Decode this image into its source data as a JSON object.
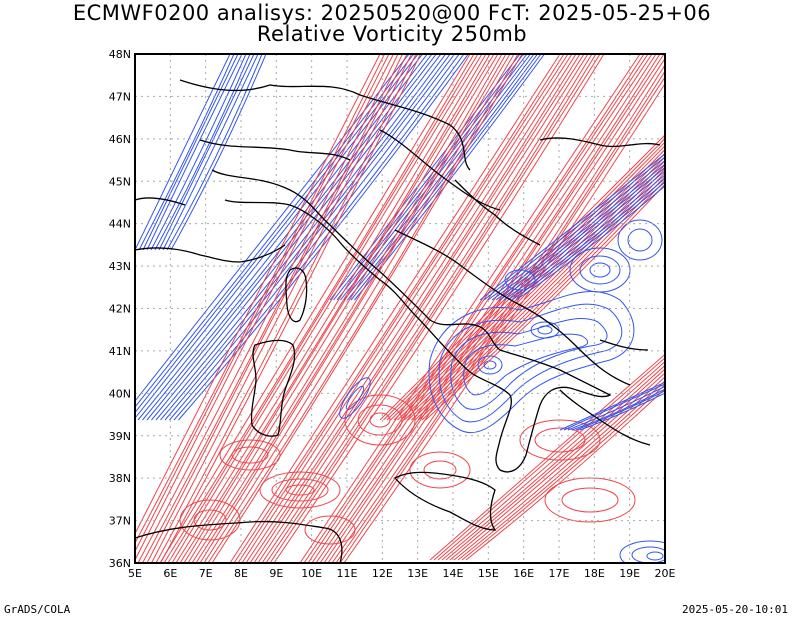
{
  "title": {
    "line1": "ECMWF0200 analisys: 20250520@00 FcT: 2025-05-25+06",
    "line2": "Relative Vorticity 250mb"
  },
  "map": {
    "lon_labels": [
      "5E",
      "6E",
      "7E",
      "8E",
      "9E",
      "10E",
      "11E",
      "12E",
      "13E",
      "14E",
      "15E",
      "16E",
      "17E",
      "18E",
      "19E",
      "20E"
    ],
    "lat_labels": [
      "48N",
      "47N",
      "46N",
      "45N",
      "44N",
      "43N",
      "42N",
      "41N",
      "40N",
      "39N",
      "38N",
      "37N",
      "36N"
    ],
    "colors": {
      "positive": "#f0444a",
      "negative": "#3355ee",
      "frame": "#000000",
      "coast": "#000000",
      "grid": "#aaaaaa"
    }
  },
  "footer": {
    "left": "GrADS/COLA",
    "right": "2025-05-20-10:01"
  }
}
